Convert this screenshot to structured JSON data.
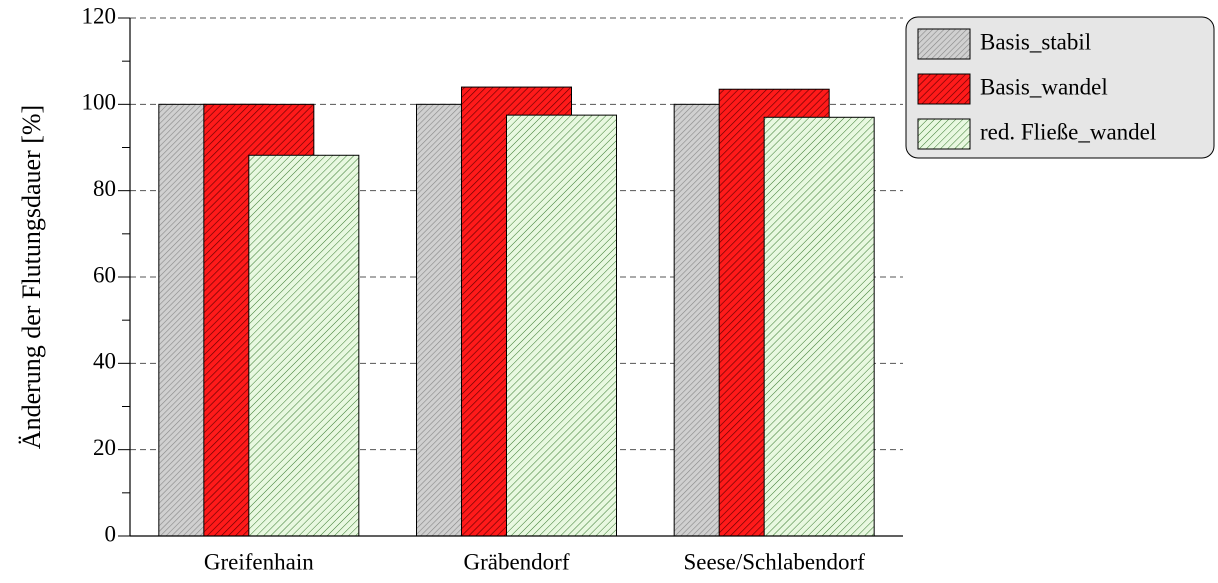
{
  "chart_data": {
    "type": "bar",
    "y_label": "Änderung der Flutungsdauer [%]",
    "categories": [
      "Greifenhain",
      "Gräbendorf",
      "Seese/Schlabendorf"
    ],
    "series": [
      {
        "name": "Basis_stabil",
        "color": "#c8c8c8",
        "values": [
          100,
          100,
          100
        ]
      },
      {
        "name": "Basis_wandel",
        "color": "#ff1a1a",
        "values": [
          100,
          104,
          103.5
        ]
      },
      {
        "name": "red. Fließe_wandel",
        "color": "#d8f0cc",
        "values": [
          88.2,
          97.5,
          97
        ]
      }
    ],
    "ylim": [
      0,
      120
    ],
    "yticks": [
      0,
      20,
      40,
      60,
      80,
      100,
      120
    ],
    "grid": true,
    "legend": "outside right"
  }
}
